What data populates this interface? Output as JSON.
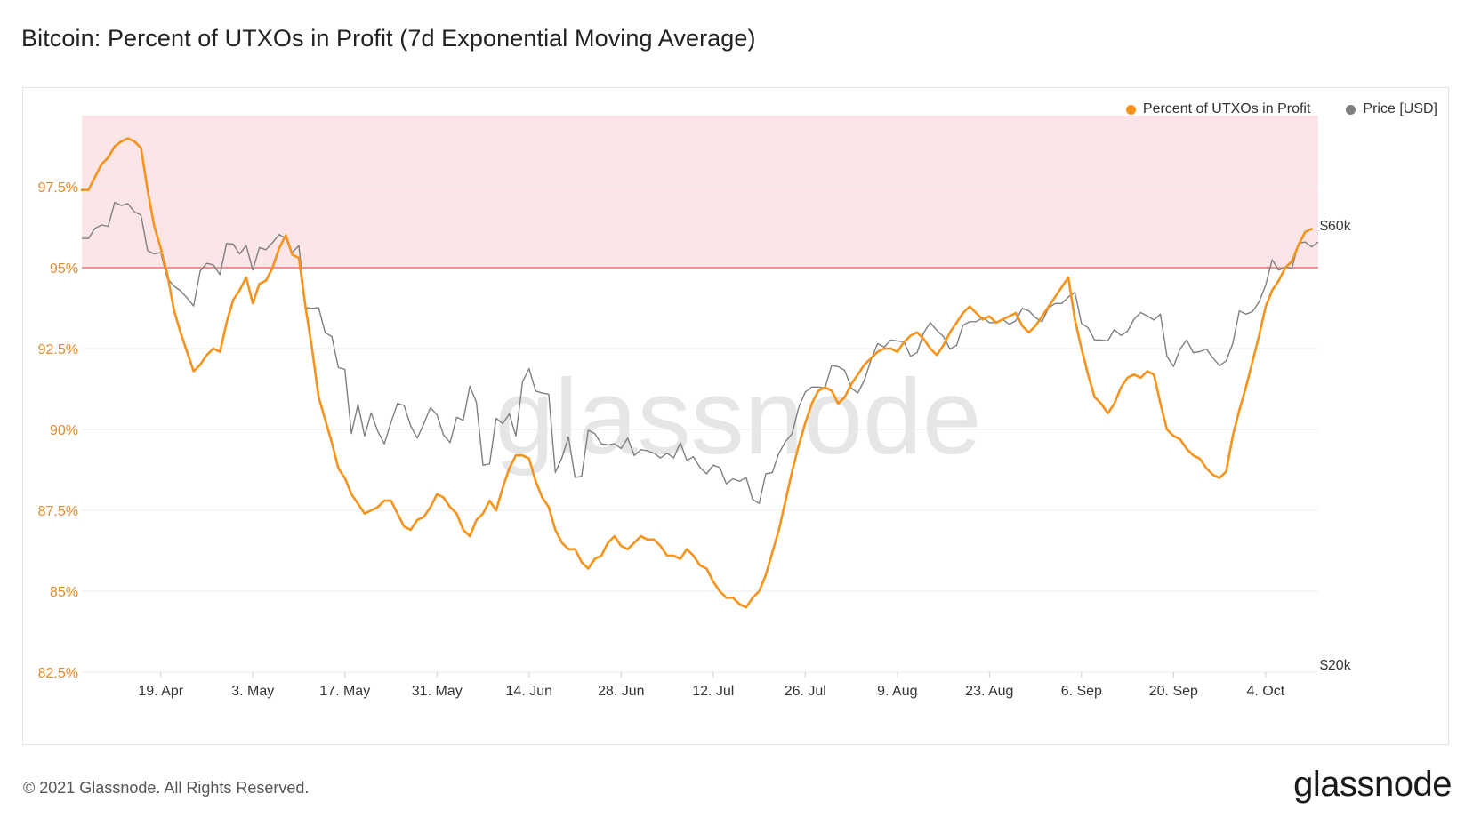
{
  "title": "Bitcoin: Percent of UTXOs in Profit (7d Exponential Moving Average)",
  "footer": {
    "copyright": "© 2021 Glassnode. All Rights Reserved.",
    "brand": "glassnode"
  },
  "watermark": "glassnode",
  "colors": {
    "profit": "#f7931a",
    "price": "#7f7f7f",
    "band": "#fbe5e7",
    "threshold_line": "#e46b6b",
    "left_axis": "#e08a2b"
  },
  "chart_data": {
    "type": "line",
    "title": "Bitcoin: Percent of UTXOs in Profit (7d Exponential Moving Average)",
    "x_start": "2021-04-07",
    "x_ticks": [
      "19. Apr",
      "3. May",
      "17. May",
      "31. May",
      "14. Jun",
      "28. Jun",
      "12. Jul",
      "26. Jul",
      "9. Aug",
      "23. Aug",
      "6. Sep",
      "20. Sep",
      "4. Oct"
    ],
    "y_left": {
      "ticks": [
        "82.5%",
        "85%",
        "87.5%",
        "90%",
        "92.5%",
        "95%",
        "97.5%"
      ],
      "range": [
        82.5,
        99.7
      ]
    },
    "y_right": {
      "ticks": [
        "$20k",
        "$60k"
      ],
      "scale": "log"
    },
    "threshold_band": {
      "from": 95,
      "to": 99.7
    },
    "legend": [
      "Percent of UTXOs in Profit",
      "Price [USD]"
    ],
    "series": [
      {
        "name": "Percent of UTXOs in Profit",
        "color": "#f7931a",
        "values": [
          97.4,
          97.4,
          97.8,
          98.2,
          98.4,
          98.75,
          98.9,
          99.0,
          98.9,
          98.7,
          97.4,
          96.3,
          95.6,
          94.8,
          93.7,
          93.0,
          92.4,
          91.8,
          92.0,
          92.3,
          92.5,
          92.4,
          93.3,
          94.0,
          94.3,
          94.7,
          93.9,
          94.5,
          94.6,
          95.0,
          95.6,
          96.0,
          95.4,
          95.3,
          93.8,
          92.5,
          91.0,
          90.3,
          89.6,
          88.8,
          88.5,
          88.0,
          87.7,
          87.4,
          87.5,
          87.6,
          87.8,
          87.8,
          87.4,
          87.0,
          86.9,
          87.2,
          87.3,
          87.6,
          88.0,
          87.9,
          87.6,
          87.4,
          86.9,
          86.7,
          87.2,
          87.4,
          87.8,
          87.5,
          88.2,
          88.8,
          89.2,
          89.2,
          89.1,
          88.4,
          87.9,
          87.6,
          86.9,
          86.5,
          86.3,
          86.3,
          85.9,
          85.7,
          86.0,
          86.1,
          86.5,
          86.7,
          86.4,
          86.3,
          86.5,
          86.7,
          86.6,
          86.6,
          86.4,
          86.1,
          86.1,
          86.0,
          86.3,
          86.1,
          85.8,
          85.7,
          85.3,
          85.0,
          84.8,
          84.8,
          84.6,
          84.5,
          84.8,
          85.0,
          85.5,
          86.2,
          86.9,
          87.8,
          88.7,
          89.5,
          90.2,
          90.8,
          91.2,
          91.3,
          91.2,
          90.8,
          91.0,
          91.4,
          91.7,
          92.0,
          92.2,
          92.4,
          92.5,
          92.5,
          92.4,
          92.7,
          92.9,
          93.0,
          92.8,
          92.5,
          92.3,
          92.6,
          93.0,
          93.3,
          93.6,
          93.8,
          93.6,
          93.4,
          93.5,
          93.3,
          93.4,
          93.5,
          93.6,
          93.2,
          93.0,
          93.2,
          93.5,
          93.8,
          94.1,
          94.4,
          94.7,
          93.4,
          92.5,
          91.7,
          91.0,
          90.8,
          90.5,
          90.8,
          91.3,
          91.6,
          91.7,
          91.6,
          91.8,
          91.7,
          90.8,
          90.0,
          89.8,
          89.7,
          89.4,
          89.2,
          89.1,
          88.8,
          88.6,
          88.5,
          88.7,
          89.8,
          90.6,
          91.3,
          92.1,
          92.9,
          93.8,
          94.3,
          94.6,
          95.0,
          95.2,
          95.7,
          96.1,
          96.2
        ]
      },
      {
        "name": "Price [USD]",
        "color": "#7f7f7f",
        "values": [
          58000,
          58000,
          59500,
          60000,
          59800,
          63500,
          63000,
          63300,
          62000,
          61500,
          56300,
          55800,
          56000,
          52500,
          51500,
          50900,
          50000,
          49000,
          53500,
          54500,
          54300,
          53000,
          57300,
          57200,
          55800,
          57000,
          53600,
          56700,
          56400,
          57400,
          58600,
          58000,
          56000,
          57000,
          48800,
          48700,
          48800,
          45800,
          45400,
          42000,
          41800,
          35600,
          38300,
          35400,
          37500,
          35800,
          34700,
          36600,
          38400,
          38200,
          36300,
          35200,
          36500,
          38000,
          37300,
          35500,
          34800,
          37100,
          36800,
          40100,
          38500,
          32900,
          33000,
          37000,
          36500,
          37400,
          35400,
          40500,
          41900,
          39600,
          39400,
          39300,
          32300,
          33500,
          35300,
          31900,
          32000,
          35900,
          35600,
          34700,
          34600,
          34700,
          34300,
          35200,
          33700,
          34200,
          34100,
          33900,
          33500,
          33900,
          33500,
          34800,
          33300,
          33600,
          32700,
          32200,
          32900,
          32700,
          31400,
          31800,
          31600,
          31900,
          30200,
          29900,
          32200,
          32300,
          33900,
          34900,
          35600,
          38000,
          39500,
          40000,
          40000,
          39900,
          42200,
          42100,
          41700,
          39900,
          39400,
          40700,
          42800,
          44600,
          44200,
          45000,
          44900,
          44800,
          43200,
          43600,
          45800,
          47000,
          46100,
          45400,
          44000,
          44400,
          46700,
          47100,
          47100,
          47600,
          47000,
          47000,
          47400,
          46800,
          47200,
          48700,
          48400,
          47600,
          47100,
          48800,
          49300,
          49300,
          50100,
          50700,
          46900,
          46400,
          45000,
          45000,
          44900,
          46200,
          45500,
          46000,
          47400,
          48200,
          47800,
          47300,
          48000,
          43200,
          42100,
          44000,
          45000,
          43600,
          43700,
          44000,
          43000,
          42200,
          42700,
          44600,
          48400,
          48000,
          48300,
          49500,
          51600,
          55000,
          53600,
          54000,
          53800,
          57300,
          57500,
          56800,
          57500
        ]
      }
    ]
  }
}
